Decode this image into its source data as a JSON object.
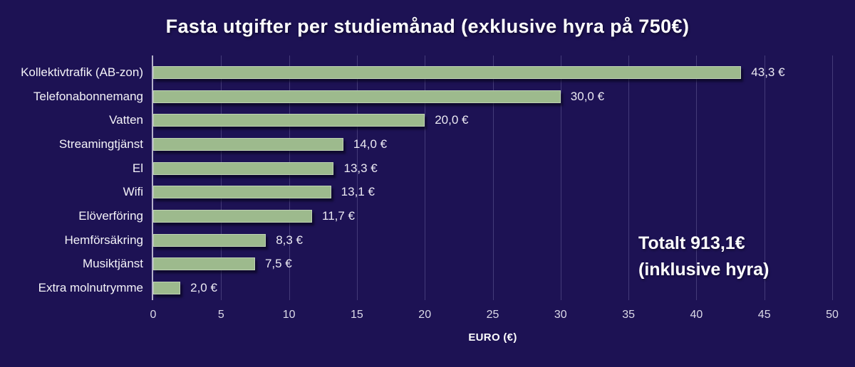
{
  "title": "Fasta utgifter per studiemånad (exklusive hyra på 750€)",
  "colors": {
    "background": "#1D1254",
    "bar": "#9DBA8D",
    "grid_line": "rgba(173,166,219,0.28)",
    "axis_line": "#B5B2CA",
    "text": "#FFFFFF",
    "tick_text": "#DCDAE8"
  },
  "chart_data": {
    "type": "bar",
    "orientation": "horizontal",
    "title": "Fasta utgifter per studiemånad (exklusive hyra på 750€)",
    "categories": [
      "Kollektivtrafik (AB-zon)",
      "Telefonabonnemang",
      "Vatten",
      "Streamingtjänst",
      "El",
      "Wifi",
      "Elöverföring",
      "Hemförsäkring",
      "Musiktjänst",
      "Extra molnutrymme"
    ],
    "values": [
      43.3,
      30.0,
      20.0,
      14.0,
      13.3,
      13.1,
      11.7,
      8.3,
      7.5,
      2.0
    ],
    "value_labels": [
      "43,3 €",
      "30,0 €",
      "20,0 €",
      "14,0 €",
      "13,3 €",
      "13,1 €",
      "11,7 €",
      "8,3 €",
      "7,5 €",
      "2,0 €"
    ],
    "xlabel": "EURO (€)",
    "xlim": [
      0,
      50
    ],
    "xticks": [
      0,
      5,
      10,
      15,
      20,
      25,
      30,
      35,
      40,
      45,
      50
    ],
    "grid": "vertical",
    "legend": false,
    "annotation": {
      "line1": "Totalt 913,1€",
      "line2": "(inklusive hyra)"
    }
  }
}
